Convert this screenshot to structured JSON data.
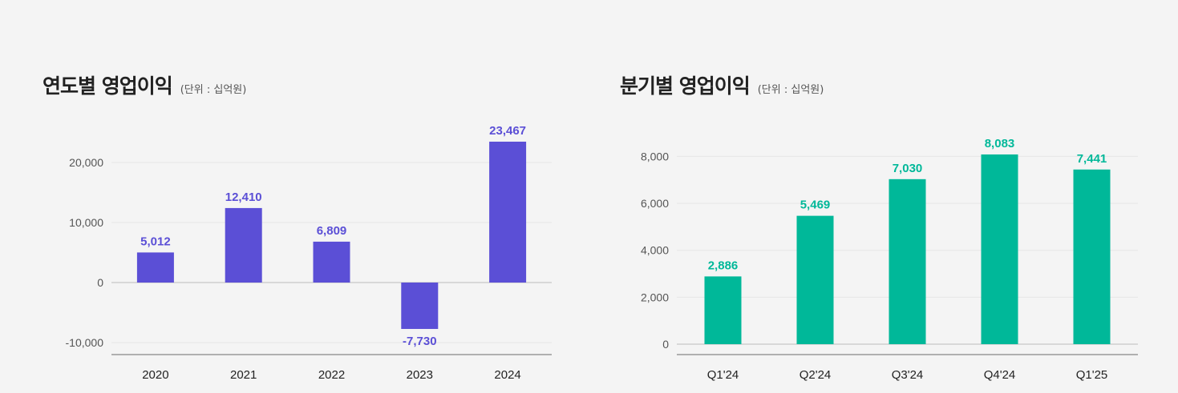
{
  "charts": [
    {
      "title": "연도별 영업이익",
      "unit": "(단위 : 십억원)",
      "chart_data": {
        "type": "bar",
        "categories": [
          "2020",
          "2021",
          "2022",
          "2023",
          "2024"
        ],
        "values": [
          5012,
          12410,
          6809,
          -7730,
          23467
        ],
        "value_labels": [
          "5,012",
          "12,410",
          "6,809",
          "-7,730",
          "23,467"
        ],
        "yticks": [
          -10000,
          0,
          10000,
          20000
        ],
        "ytick_labels": [
          "-10,000",
          "0",
          "10,000",
          "20,000"
        ],
        "ylim": [
          -12000,
          26000
        ],
        "grid": true,
        "colors": {
          "bar": "#5b4fd6",
          "label": "#5b4fd6"
        }
      }
    },
    {
      "title": "분기별 영업이익",
      "unit": "(단위 : 십억원)",
      "chart_data": {
        "type": "bar",
        "categories": [
          "Q1'24",
          "Q2'24",
          "Q3'24",
          "Q4'24",
          "Q1'25"
        ],
        "values": [
          2886,
          5469,
          7030,
          8083,
          7441
        ],
        "value_labels": [
          "2,886",
          "5,469",
          "7,030",
          "8,083",
          "7,441"
        ],
        "yticks": [
          0,
          2000,
          4000,
          6000,
          8000
        ],
        "ytick_labels": [
          "0",
          "2,000",
          "4,000",
          "6,000",
          "8,000"
        ],
        "ylim": [
          0,
          8900
        ],
        "grid": true,
        "colors": {
          "bar": "#00b899",
          "label": "#00b899"
        }
      }
    }
  ]
}
